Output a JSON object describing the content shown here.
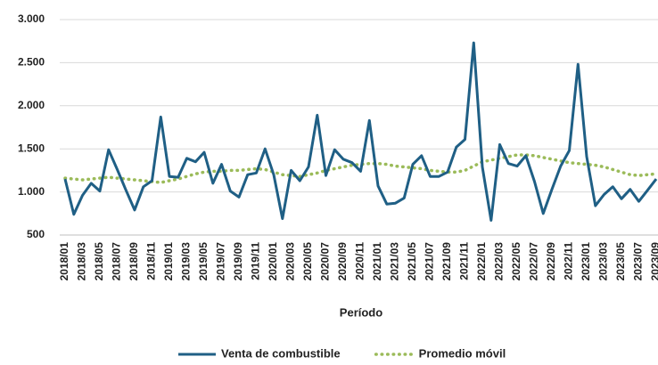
{
  "chart_data": {
    "type": "line",
    "x_label": "Período",
    "categories": [
      "2018/01",
      null,
      "2018/03",
      null,
      "2018/05",
      null,
      "2018/07",
      null,
      "2018/09",
      null,
      "2018/11",
      null,
      "2019/01",
      null,
      "2019/03",
      null,
      "2019/05",
      null,
      "2019/07",
      null,
      "2019/09",
      null,
      "2019/11",
      null,
      "2020/01",
      null,
      "2020/03",
      null,
      "2020/05",
      null,
      "2020/07",
      null,
      "2020/09",
      null,
      "2020/11",
      null,
      "2021/01",
      null,
      "2021/03",
      null,
      "2021/05",
      null,
      "2021/07",
      null,
      "2021/09",
      null,
      "2021/11",
      null,
      "2022/01",
      null,
      "2022/03",
      null,
      "2022/05",
      null,
      "2022/07",
      null,
      "2022/09",
      null,
      "2022/11",
      null,
      "2023/01",
      null,
      "2023/03",
      null,
      "2023/05",
      null,
      "2023/07",
      null,
      "2023/09"
    ],
    "series": [
      {
        "name": "Venta de combustible",
        "color": "#1f5f85",
        "style": "solid",
        "values": [
          1150,
          740,
          960,
          1100,
          1010,
          1490,
          1260,
          1020,
          790,
          1060,
          1130,
          1870,
          1180,
          1170,
          1390,
          1350,
          1460,
          1100,
          1320,
          1010,
          940,
          1200,
          1220,
          1500,
          1200,
          690,
          1250,
          1130,
          1290,
          1890,
          1190,
          1490,
          1380,
          1340,
          1240,
          1830,
          1070,
          860,
          870,
          930,
          1320,
          1420,
          1180,
          1180,
          1230,
          1520,
          1610,
          2730,
          1290,
          670,
          1550,
          1330,
          1300,
          1420,
          1120,
          750,
          1030,
          1300,
          1480,
          2480,
          1410,
          840,
          970,
          1060,
          920,
          1030,
          890,
          1020,
          1150
        ]
      },
      {
        "name": "Promedio móvil",
        "color": "#9bbb59",
        "style": "dotted",
        "values": [
          1160,
          1150,
          1140,
          1150,
          1160,
          1170,
          1160,
          1150,
          1140,
          1130,
          1120,
          1110,
          1130,
          1150,
          1180,
          1210,
          1230,
          1240,
          1240,
          1250,
          1250,
          1260,
          1270,
          1260,
          1230,
          1200,
          1190,
          1180,
          1200,
          1220,
          1250,
          1270,
          1290,
          1310,
          1320,
          1330,
          1330,
          1320,
          1300,
          1290,
          1280,
          1270,
          1250,
          1240,
          1230,
          1230,
          1250,
          1300,
          1350,
          1370,
          1390,
          1410,
          1430,
          1430,
          1420,
          1400,
          1380,
          1360,
          1340,
          1330,
          1320,
          1310,
          1290,
          1260,
          1230,
          1200,
          1190,
          1200,
          1210
        ]
      }
    ],
    "ylim": [
      500,
      3000
    ],
    "yticks": [
      500,
      {
        "value": 1000,
        "label": "1.000"
      },
      {
        "value": 1500,
        "label": "1.500"
      },
      {
        "value": 2000,
        "label": "2.000"
      },
      {
        "value": 2500,
        "label": "2.500"
      },
      {
        "value": 3000,
        "label": "3.000"
      }
    ],
    "grid": true,
    "legend": "bottom"
  }
}
